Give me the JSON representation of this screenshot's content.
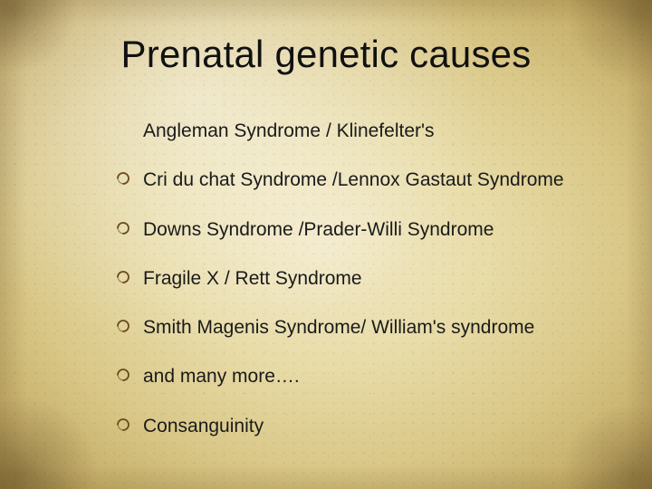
{
  "title": "Prenatal genetic causes",
  "title_fontsize": 42,
  "title_color": "#111111",
  "body_fontsize": 21,
  "body_color": "#1a1a1a",
  "bullet_stroke": "#6b4a1f",
  "background": {
    "center": "#f2e9c8",
    "mid": "#e8dca8",
    "edge": "#c4ac67",
    "corner": "#a88f4e"
  },
  "items": [
    {
      "text": "Angleman Syndrome / Klinefelter's",
      "bullet": false
    },
    {
      "text": "Cri du chat Syndrome /Lennox Gastaut Syndrome",
      "bullet": true
    },
    {
      "text": "Downs Syndrome /Prader-Willi Syndrome",
      "bullet": true
    },
    {
      "text": "Fragile X / Rett Syndrome",
      "bullet": true
    },
    {
      "text": "Smith Magenis Syndrome/ William's syndrome",
      "bullet": true
    },
    {
      "text": "and many more….",
      "bullet": true
    },
    {
      "text": " Consanguinity",
      "bullet": true
    }
  ]
}
